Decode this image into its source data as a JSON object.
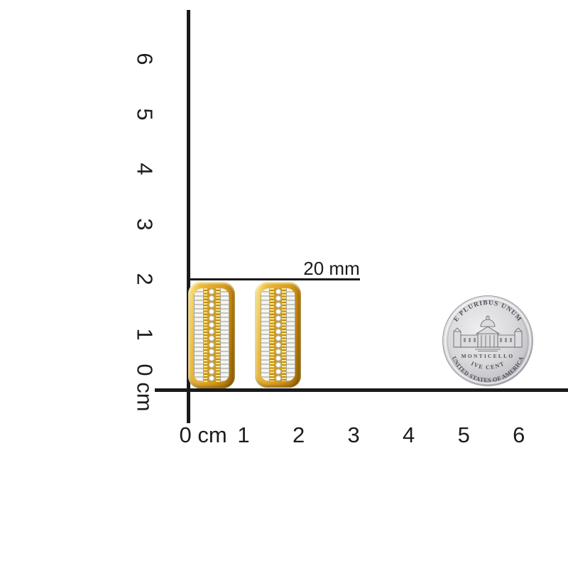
{
  "scene": {
    "background": "#ffffff",
    "description": "Pair of yellow gold diamond huggie earrings shown to scale with cm rulers and a US nickel coin"
  },
  "annotation": {
    "label": "20 mm",
    "line_color": "#1b1b1b",
    "text_color": "#1c1c1c"
  },
  "vertical_ruler": {
    "unit": "cm",
    "labels": [
      "0 cm",
      "1",
      "2",
      "3",
      "4",
      "5",
      "6"
    ],
    "cm_count": 6,
    "extra_mm_ticks": 8,
    "color": "#1a1a1a"
  },
  "horizontal_ruler": {
    "unit": "cm",
    "labels": [
      "0 cm",
      "1",
      "2",
      "3",
      "4",
      "5",
      "6"
    ],
    "cm_count": 6,
    "extra_mm_ticks": 8,
    "color": "#1a1a1a"
  },
  "earrings": {
    "count": 2,
    "style": "three-row diamond huggie, baguette-round-baguette",
    "colors": {
      "gold_light": "#f9e291",
      "gold": "#e7b434",
      "gold_deep": "#9c6a05",
      "diamond": "#f7f7f3",
      "diamond_shadow": "#a3a399"
    }
  },
  "coin": {
    "name": "US nickel (reverse)",
    "top_text": "E PLURIBUS UNUM",
    "building_name": "MONTICELLO",
    "denomination": "FIVE CENTS",
    "bottom_text": "UNITED STATES OF AMERICA",
    "colors": {
      "silver_light": "#efeff1",
      "silver": "#d9d9dc",
      "silver_dark": "#88888e",
      "engraving": "#4e4e57"
    }
  }
}
